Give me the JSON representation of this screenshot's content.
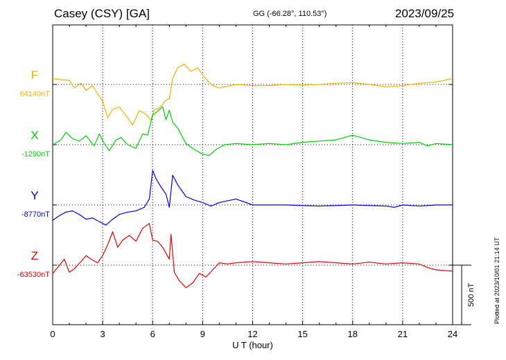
{
  "header": {
    "station": "Casey (CSY)  [GA]",
    "coords": "GG (-66.28°, 110.53°)",
    "date": "2023/09/25"
  },
  "footer": {
    "plotted": "Plotted at 2023/10/01 21:14 UT"
  },
  "chart_data": {
    "type": "line",
    "xlabel": "U T (hour)",
    "xlim": [
      0,
      24
    ],
    "xticks": [
      0,
      3,
      6,
      9,
      12,
      15,
      18,
      21,
      24
    ],
    "grid": true,
    "scale_bar": {
      "label": "500 nT",
      "value_nT": 500
    },
    "series": [
      {
        "name": "F",
        "baseline_label": "64140nT",
        "baseline": 64140,
        "color": "#f0b000",
        "x": [
          0,
          0.5,
          1,
          1.3,
          1.7,
          2,
          2.4,
          2.7,
          3,
          3.3,
          3.6,
          4,
          4.4,
          4.8,
          5.2,
          5.6,
          5.9,
          6.1,
          6.4,
          6.8,
          7,
          7.2,
          7.5,
          7.9,
          8.3,
          8.7,
          9,
          9.3,
          9.6,
          10,
          10.5,
          11,
          12,
          13,
          14,
          15,
          16,
          17,
          18,
          19,
          20,
          21,
          22,
          23,
          24
        ],
        "y": [
          64190,
          64180,
          64175,
          64110,
          64150,
          64090,
          64130,
          64060,
          64000,
          63860,
          63930,
          63950,
          63880,
          63800,
          63920,
          63890,
          63840,
          63930,
          63940,
          64010,
          64020,
          64190,
          64280,
          64310,
          64250,
          64280,
          64220,
          64170,
          64130,
          64110,
          64125,
          64140,
          64130,
          64130,
          64140,
          64135,
          64140,
          64150,
          64155,
          64140,
          64120,
          64130,
          64150,
          64160,
          64190
        ]
      },
      {
        "name": "X",
        "baseline_label": "-1290nT",
        "baseline": -1290,
        "color": "#00d000",
        "x": [
          0,
          0.5,
          0.8,
          1.2,
          1.6,
          2,
          2.5,
          2.8,
          3.1,
          3.4,
          3.8,
          4.1,
          4.5,
          5,
          5.4,
          5.7,
          6,
          6.3,
          6.6,
          6.8,
          7,
          7.2,
          7.5,
          8,
          8.5,
          9,
          9.4,
          9.8,
          10.3,
          11,
          12,
          13,
          14,
          15,
          16,
          17,
          18,
          18.5,
          19,
          20,
          21,
          22,
          22.5,
          23,
          24
        ],
        "y": [
          -1290,
          -1250,
          -1185,
          -1240,
          -1260,
          -1215,
          -1300,
          -1200,
          -1280,
          -1340,
          -1250,
          -1230,
          -1290,
          -1320,
          -1200,
          -1210,
          -1040,
          -1010,
          -970,
          -1080,
          -1000,
          -1100,
          -1150,
          -1280,
          -1330,
          -1370,
          -1380,
          -1330,
          -1290,
          -1280,
          -1290,
          -1280,
          -1290,
          -1270,
          -1260,
          -1250,
          -1210,
          -1230,
          -1250,
          -1270,
          -1280,
          -1270,
          -1300,
          -1280,
          -1290
        ]
      },
      {
        "name": "Y",
        "baseline_label": "-8770nT",
        "baseline": -8770,
        "color": "#0000e0",
        "x": [
          0,
          0.4,
          0.8,
          1.2,
          1.6,
          2,
          2.4,
          2.8,
          3.2,
          3.6,
          4,
          4.5,
          5,
          5.5,
          5.8,
          6,
          6.2,
          6.5,
          6.8,
          7,
          7.2,
          7.5,
          8,
          8.5,
          9,
          9.5,
          10,
          11,
          12,
          13,
          14,
          15,
          16,
          17,
          18,
          19,
          20,
          20.5,
          21,
          22,
          23,
          24
        ],
        "y": [
          -8900,
          -8860,
          -8830,
          -8820,
          -8850,
          -8890,
          -8880,
          -8910,
          -8940,
          -8890,
          -8850,
          -8830,
          -8820,
          -8790,
          -8720,
          -8480,
          -8550,
          -8620,
          -8680,
          -8790,
          -8520,
          -8600,
          -8700,
          -8730,
          -8750,
          -8780,
          -8750,
          -8720,
          -8770,
          -8770,
          -8770,
          -8775,
          -8780,
          -8775,
          -8770,
          -8775,
          -8780,
          -8790,
          -8770,
          -8780,
          -8770,
          -8770
        ]
      },
      {
        "name": "Z",
        "baseline_label": "-63530nT",
        "baseline": -63530,
        "color": "#e00000",
        "x": [
          0,
          0.3,
          0.7,
          1,
          1.3,
          1.7,
          2,
          2.3,
          2.7,
          3,
          3.3,
          3.6,
          3.9,
          4.2,
          4.6,
          5,
          5.4,
          5.8,
          6,
          6.3,
          6.6,
          7,
          7.1,
          7.3,
          7.6,
          8,
          8.4,
          8.8,
          9.2,
          9.6,
          10,
          10.5,
          11,
          12,
          13,
          14,
          15,
          16,
          17,
          18,
          19,
          20,
          21,
          22,
          22.5,
          23,
          24
        ],
        "y": [
          -63600,
          -63550,
          -63480,
          -63590,
          -63560,
          -63500,
          -63450,
          -63480,
          -63510,
          -63450,
          -63360,
          -63250,
          -63380,
          -63320,
          -63280,
          -63330,
          -63220,
          -63180,
          -63320,
          -63330,
          -63380,
          -63480,
          -63270,
          -63590,
          -63660,
          -63720,
          -63680,
          -63600,
          -63630,
          -63570,
          -63510,
          -63520,
          -63510,
          -63500,
          -63510,
          -63520,
          -63510,
          -63500,
          -63510,
          -63520,
          -63505,
          -63520,
          -63510,
          -63520,
          -63550,
          -63570,
          -63580
        ]
      }
    ]
  }
}
